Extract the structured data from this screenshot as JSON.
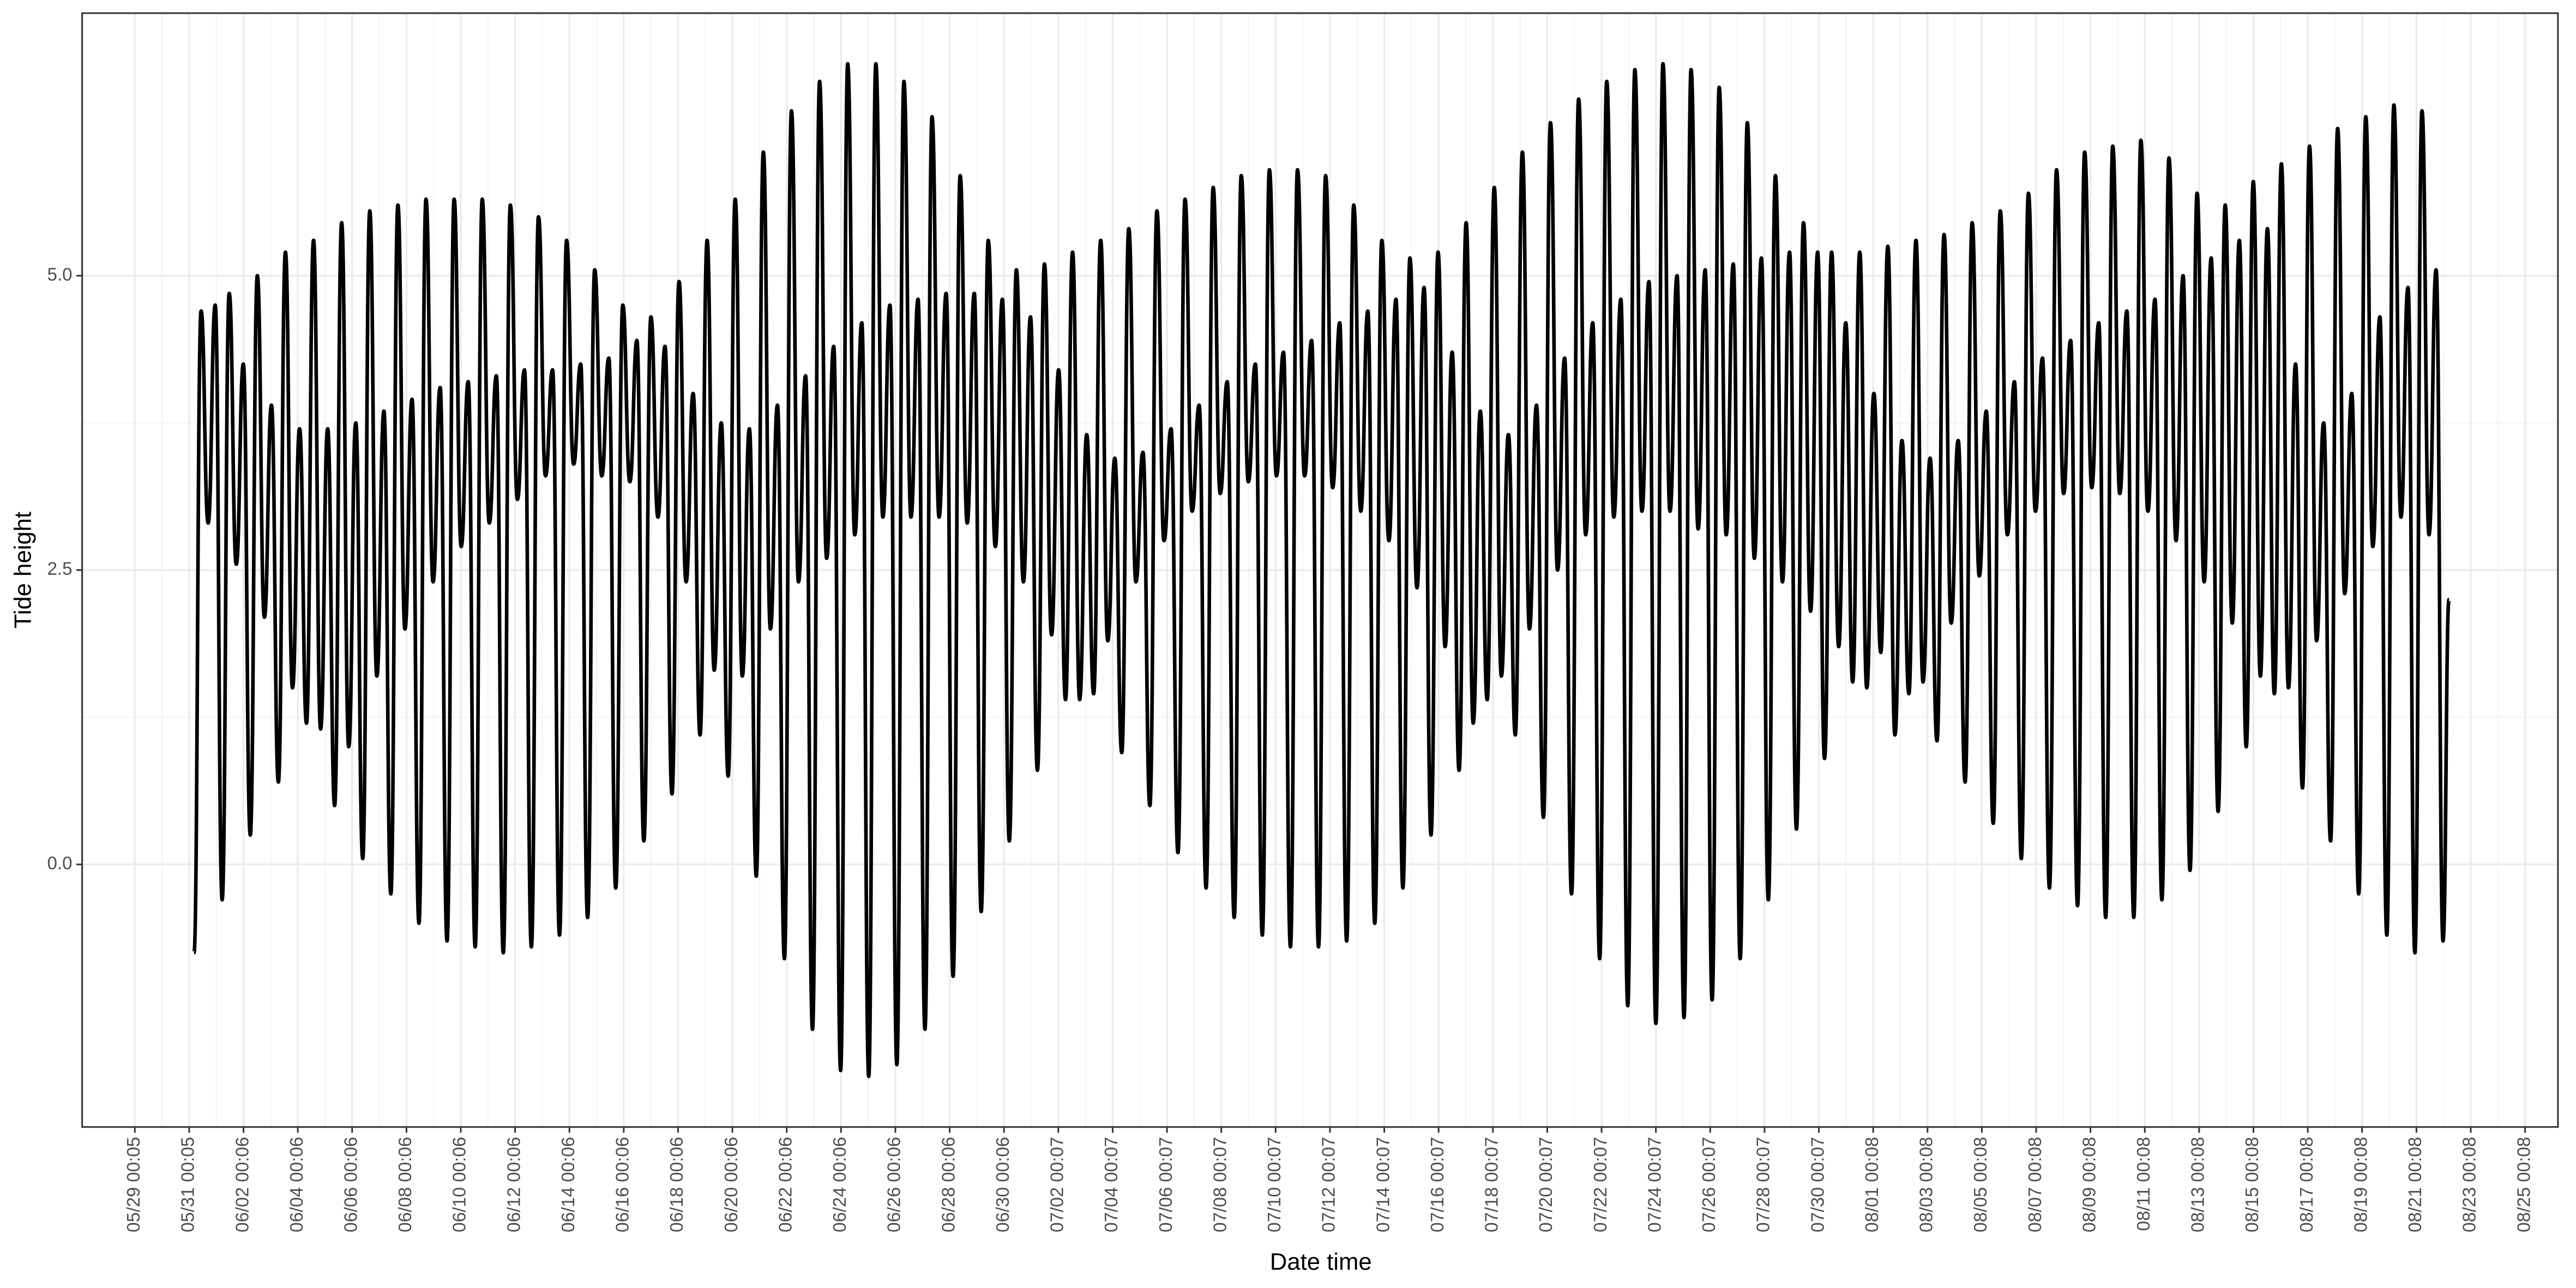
{
  "chart_data": {
    "type": "line",
    "x_label": "Date time",
    "y_label": "Tide height",
    "color": "#000000",
    "grid": true,
    "minor_grid": true,
    "xlim": [
      -1.94,
      89.21
    ],
    "ylim": [
      -2.23,
      7.23
    ],
    "yticks": [
      {
        "value": 0,
        "label": "0.0"
      },
      {
        "value": 2.5,
        "label": "2.5"
      },
      {
        "value": 5,
        "label": "5.0"
      }
    ],
    "xticks": [
      {
        "value": 0,
        "label": "05/29 00:05"
      },
      {
        "value": 2,
        "label": "05/31 00:05"
      },
      {
        "value": 4,
        "label": "06/02 00:06"
      },
      {
        "value": 6,
        "label": "06/04 00:06"
      },
      {
        "value": 8,
        "label": "06/06 00:06"
      },
      {
        "value": 10,
        "label": "06/08 00:06"
      },
      {
        "value": 12,
        "label": "06/10 00:06"
      },
      {
        "value": 14,
        "label": "06/12 00:06"
      },
      {
        "value": 16,
        "label": "06/14 00:06"
      },
      {
        "value": 18,
        "label": "06/16 00:06"
      },
      {
        "value": 20,
        "label": "06/18 00:06"
      },
      {
        "value": 22,
        "label": "06/20 00:06"
      },
      {
        "value": 24,
        "label": "06/22 00:06"
      },
      {
        "value": 26,
        "label": "06/24 00:06"
      },
      {
        "value": 28,
        "label": "06/26 00:06"
      },
      {
        "value": 30,
        "label": "06/28 00:06"
      },
      {
        "value": 32,
        "label": "06/30 00:06"
      },
      {
        "value": 34,
        "label": "07/02 00:07"
      },
      {
        "value": 36,
        "label": "07/04 00:07"
      },
      {
        "value": 38,
        "label": "07/06 00:07"
      },
      {
        "value": 40,
        "label": "07/08 00:07"
      },
      {
        "value": 42,
        "label": "07/10 00:07"
      },
      {
        "value": 44,
        "label": "07/12 00:07"
      },
      {
        "value": 46,
        "label": "07/14 00:07"
      },
      {
        "value": 48,
        "label": "07/16 00:07"
      },
      {
        "value": 50,
        "label": "07/18 00:07"
      },
      {
        "value": 52,
        "label": "07/20 00:07"
      },
      {
        "value": 54,
        "label": "07/22 00:07"
      },
      {
        "value": 56,
        "label": "07/24 00:07"
      },
      {
        "value": 58,
        "label": "07/26 00:07"
      },
      {
        "value": 60,
        "label": "07/28 00:07"
      },
      {
        "value": 62,
        "label": "07/30 00:07"
      },
      {
        "value": 64,
        "label": "08/01 00:08"
      },
      {
        "value": 66,
        "label": "08/03 00:08"
      },
      {
        "value": 68,
        "label": "08/05 00:08"
      },
      {
        "value": 70,
        "label": "08/07 00:08"
      },
      {
        "value": 72,
        "label": "08/09 00:08"
      },
      {
        "value": 74,
        "label": "08/11 00:08"
      },
      {
        "value": 76,
        "label": "08/13 00:08"
      },
      {
        "value": 78,
        "label": "08/15 00:08"
      },
      {
        "value": 80,
        "label": "08/17 00:08"
      },
      {
        "value": 82,
        "label": "08/19 00:08"
      },
      {
        "value": 84,
        "label": "08/21 00:08"
      },
      {
        "value": 86,
        "label": "08/23 00:08"
      },
      {
        "value": 88,
        "label": "08/25 00:08"
      }
    ],
    "x": [
      2.18,
      2.44,
      2.7,
      2.96,
      3.215,
      3.475,
      3.735,
      3.995,
      4.25,
      4.51,
      4.77,
      5.03,
      5.285,
      5.545,
      5.805,
      6.065,
      6.32,
      6.58,
      6.84,
      7.1,
      7.355,
      7.615,
      7.875,
      8.135,
      8.39,
      8.65,
      8.91,
      9.17,
      9.425,
      9.685,
      9.945,
      10.205,
      10.46,
      10.72,
      10.98,
      11.24,
      11.495,
      11.755,
      12.015,
      12.275,
      12.53,
      12.79,
      13.05,
      13.31,
      13.565,
      13.825,
      14.085,
      14.345,
      14.6,
      14.86,
      15.12,
      15.38,
      15.635,
      15.895,
      16.155,
      16.415,
      16.67,
      16.93,
      17.19,
      17.45,
      17.705,
      17.965,
      18.225,
      18.485,
      18.74,
      19.0,
      19.26,
      19.52,
      19.775,
      20.035,
      20.295,
      20.555,
      20.81,
      21.07,
      21.33,
      21.59,
      21.845,
      22.105,
      22.365,
      22.625,
      22.88,
      23.14,
      23.4,
      23.66,
      23.915,
      24.175,
      24.435,
      24.695,
      24.95,
      25.21,
      25.47,
      25.73,
      25.985,
      26.245,
      26.505,
      26.765,
      27.02,
      27.28,
      27.54,
      27.8,
      28.055,
      28.315,
      28.575,
      28.835,
      29.09,
      29.35,
      29.61,
      29.87,
      30.125,
      30.385,
      30.645,
      30.905,
      31.16,
      31.42,
      31.68,
      31.94,
      32.195,
      32.455,
      32.715,
      32.975,
      33.23,
      33.49,
      33.75,
      34.01,
      34.265,
      34.525,
      34.785,
      35.045,
      35.3,
      35.56,
      35.82,
      36.08,
      36.335,
      36.595,
      36.855,
      37.115,
      37.37,
      37.63,
      37.89,
      38.15,
      38.405,
      38.665,
      38.925,
      39.185,
      39.44,
      39.7,
      39.96,
      40.22,
      40.475,
      40.735,
      40.995,
      41.255,
      41.51,
      41.77,
      42.03,
      42.29,
      42.545,
      42.805,
      43.065,
      43.325,
      43.58,
      43.84,
      44.1,
      44.36,
      44.615,
      44.875,
      45.135,
      45.395,
      45.65,
      45.91,
      46.17,
      46.43,
      46.685,
      46.945,
      47.205,
      47.465,
      47.72,
      47.98,
      48.24,
      48.5,
      48.755,
      49.015,
      49.275,
      49.535,
      49.79,
      50.05,
      50.31,
      50.57,
      50.825,
      51.085,
      51.345,
      51.605,
      51.86,
      52.12,
      52.38,
      52.64,
      52.895,
      53.155,
      53.415,
      53.675,
      53.93,
      54.19,
      54.45,
      54.71,
      54.965,
      55.225,
      55.485,
      55.745,
      56.0,
      56.26,
      56.52,
      56.78,
      57.035,
      57.295,
      57.555,
      57.815,
      58.07,
      58.33,
      58.59,
      58.85,
      59.105,
      59.365,
      59.625,
      59.885,
      60.14,
      60.4,
      60.66,
      60.92,
      61.175,
      61.435,
      61.695,
      61.955,
      62.21,
      62.47,
      62.73,
      62.99,
      63.245,
      63.505,
      63.765,
      64.025,
      64.28,
      64.54,
      64.8,
      65.06,
      65.315,
      65.575,
      65.835,
      66.095,
      66.35,
      66.61,
      66.87,
      67.13,
      67.385,
      67.645,
      67.905,
      68.165,
      68.42,
      68.68,
      68.94,
      69.2,
      69.455,
      69.715,
      69.975,
      70.235,
      70.49,
      70.75,
      71.01,
      71.27,
      71.525,
      71.785,
      72.045,
      72.305,
      72.56,
      72.82,
      73.08,
      73.34,
      73.595,
      73.855,
      74.115,
      74.375,
      74.63,
      74.89,
      75.15,
      75.41,
      75.665,
      75.925,
      76.185,
      76.445,
      76.7,
      76.96,
      77.22,
      77.48,
      77.735,
      77.995,
      78.255,
      78.515,
      78.77,
      79.03,
      79.29,
      79.55,
      79.805,
      80.065,
      80.325,
      80.585,
      80.84,
      81.1,
      81.36,
      81.62,
      81.875,
      82.135,
      82.395,
      82.655,
      82.91,
      83.17,
      83.43,
      83.69,
      83.945,
      84.205,
      84.465,
      84.725,
      84.98,
      85.2
    ],
    "values": [
      -0.75,
      4.7,
      2.9,
      4.75,
      -0.3,
      4.85,
      2.55,
      4.25,
      0.25,
      5.0,
      2.1,
      3.9,
      0.7,
      5.2,
      1.5,
      3.7,
      1.2,
      5.3,
      1.15,
      3.7,
      0.5,
      5.45,
      1.0,
      3.75,
      0.05,
      5.55,
      1.6,
      3.85,
      -0.25,
      5.6,
      2.0,
      3.95,
      -0.5,
      5.65,
      2.4,
      4.05,
      -0.65,
      5.65,
      2.7,
      4.1,
      -0.7,
      5.65,
      2.9,
      4.15,
      -0.75,
      5.6,
      3.1,
      4.2,
      -0.7,
      5.5,
      3.3,
      4.2,
      -0.6,
      5.3,
      3.4,
      4.25,
      -0.45,
      5.05,
      3.3,
      4.3,
      -0.2,
      4.75,
      3.25,
      4.45,
      0.2,
      4.65,
      2.95,
      4.4,
      0.6,
      4.95,
      2.4,
      4.0,
      1.1,
      5.3,
      1.65,
      3.75,
      0.75,
      5.65,
      1.6,
      3.7,
      -0.1,
      6.05,
      2.0,
      3.9,
      -0.8,
      6.4,
      2.4,
      4.15,
      -1.4,
      6.65,
      2.6,
      4.4,
      -1.75,
      6.8,
      2.8,
      4.6,
      -1.8,
      6.8,
      2.95,
      4.75,
      -1.7,
      6.65,
      2.95,
      4.8,
      -1.4,
      6.35,
      2.95,
      4.85,
      -0.95,
      5.85,
      2.9,
      4.85,
      -0.4,
      5.3,
      2.7,
      4.8,
      0.2,
      5.05,
      2.4,
      4.65,
      0.8,
      5.1,
      1.95,
      4.2,
      1.4,
      5.2,
      1.4,
      3.65,
      1.45,
      5.3,
      1.9,
      3.45,
      0.95,
      5.4,
      2.4,
      3.5,
      0.5,
      5.55,
      2.75,
      3.7,
      0.1,
      5.65,
      3.0,
      3.9,
      -0.2,
      5.75,
      3.15,
      4.1,
      -0.45,
      5.85,
      3.25,
      4.25,
      -0.6,
      5.9,
      3.3,
      4.35,
      -0.7,
      5.9,
      3.3,
      4.45,
      -0.7,
      5.85,
      3.2,
      4.6,
      -0.65,
      5.6,
      3.0,
      4.7,
      -0.5,
      5.3,
      2.75,
      4.8,
      -0.2,
      5.15,
      2.35,
      4.9,
      0.25,
      5.2,
      1.85,
      4.35,
      0.8,
      5.45,
      1.2,
      3.85,
      1.4,
      5.75,
      1.6,
      3.65,
      1.1,
      6.05,
      2.0,
      3.9,
      0.4,
      6.3,
      2.5,
      4.3,
      -0.25,
      6.5,
      2.8,
      4.6,
      -0.8,
      6.65,
      2.95,
      4.8,
      -1.2,
      6.75,
      3.0,
      4.95,
      -1.35,
      6.8,
      3.0,
      5.0,
      -1.3,
      6.75,
      2.85,
      5.05,
      -1.15,
      6.6,
      2.8,
      5.1,
      -0.8,
      6.3,
      2.6,
      5.15,
      -0.3,
      5.85,
      2.4,
      5.2,
      0.3,
      5.45,
      2.15,
      5.2,
      0.9,
      5.2,
      1.85,
      4.6,
      1.55,
      5.2,
      1.5,
      4.0,
      1.8,
      5.25,
      1.1,
      3.6,
      1.45,
      5.3,
      1.55,
      3.45,
      1.05,
      5.35,
      2.05,
      3.6,
      0.7,
      5.45,
      2.45,
      3.85,
      0.35,
      5.55,
      2.8,
      4.1,
      0.05,
      5.7,
      3.0,
      4.3,
      -0.2,
      5.9,
      3.15,
      4.45,
      -0.35,
      6.05,
      3.2,
      4.6,
      -0.45,
      6.1,
      3.15,
      4.7,
      -0.45,
      6.15,
      3.0,
      4.8,
      -0.3,
      6.0,
      2.75,
      5.0,
      -0.05,
      5.7,
      2.4,
      5.15,
      0.45,
      5.6,
      2.05,
      5.3,
      1.0,
      5.8,
      1.6,
      5.4,
      1.45,
      5.95,
      1.5,
      4.25,
      0.65,
      6.1,
      1.9,
      3.75,
      0.2,
      6.25,
      2.3,
      4.0,
      -0.25,
      6.35,
      2.7,
      4.65,
      -0.6,
      6.45,
      2.95,
      4.9,
      -0.75,
      6.4,
      2.8,
      5.05,
      -0.65,
      2.25
    ]
  }
}
